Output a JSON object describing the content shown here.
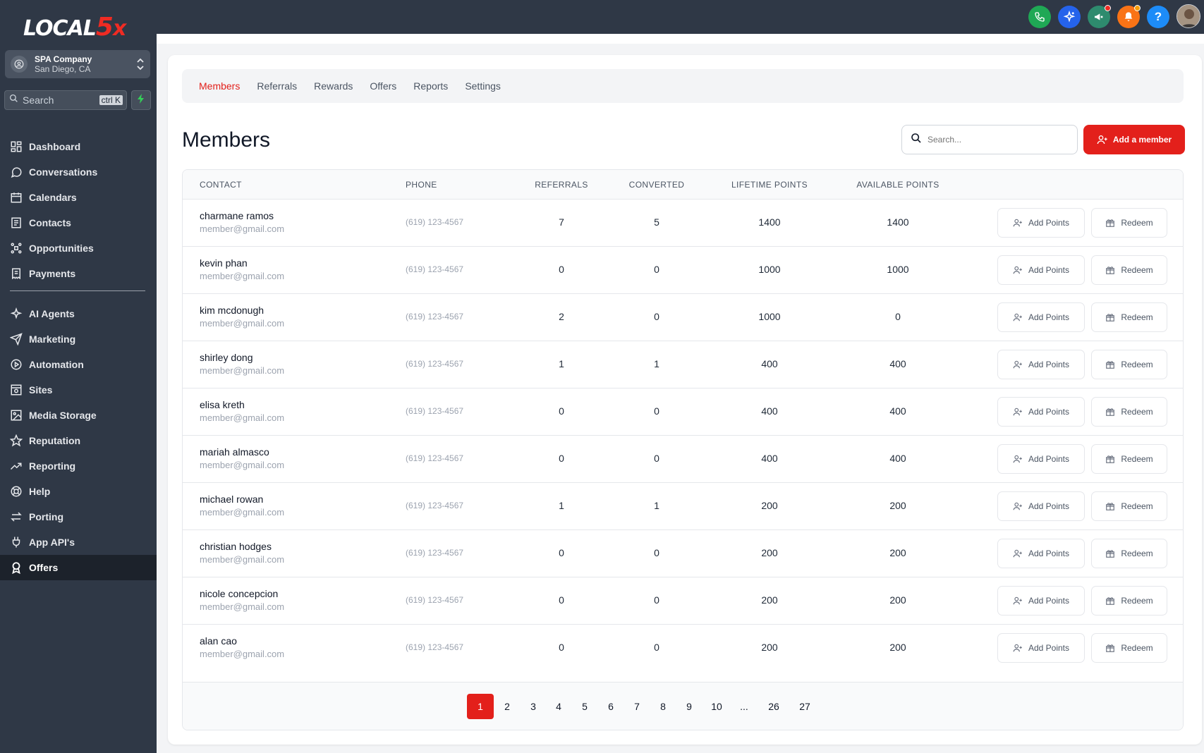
{
  "app": {
    "logo_word": "LOCAL",
    "logo_num": "5",
    "logo_x": "x"
  },
  "account": {
    "name": "SPA Company",
    "location": "San Diego, CA"
  },
  "sidebar_search": {
    "placeholder": "Search",
    "shortcut": "ctrl K"
  },
  "nav_top": [
    {
      "label": "Dashboard",
      "icon": "dashboard-icon"
    },
    {
      "label": "Conversations",
      "icon": "chat-icon"
    },
    {
      "label": "Calendars",
      "icon": "calendar-icon"
    },
    {
      "label": "Contacts",
      "icon": "contacts-icon"
    },
    {
      "label": "Opportunities",
      "icon": "opportunities-icon"
    },
    {
      "label": "Payments",
      "icon": "payments-icon"
    }
  ],
  "nav_bottom": [
    {
      "label": "AI Agents",
      "icon": "sparkle-icon"
    },
    {
      "label": "Marketing",
      "icon": "send-icon"
    },
    {
      "label": "Automation",
      "icon": "play-icon"
    },
    {
      "label": "Sites",
      "icon": "sites-icon"
    },
    {
      "label": "Media Storage",
      "icon": "image-icon"
    },
    {
      "label": "Reputation",
      "icon": "star-icon"
    },
    {
      "label": "Reporting",
      "icon": "trend-icon"
    },
    {
      "label": "Help",
      "icon": "help-icon"
    },
    {
      "label": "Porting",
      "icon": "swap-icon"
    },
    {
      "label": "App API's",
      "icon": "plug-icon"
    },
    {
      "label": "Offers",
      "icon": "offers-icon",
      "active": true
    }
  ],
  "topbar": {
    "icons": [
      "phone-icon",
      "ai-sparkle-icon",
      "megaphone-icon",
      "bell-icon",
      "help-icon",
      "user-avatar"
    ],
    "colors": {
      "phone": "#1fa855",
      "ai": "#2563eb",
      "megaphone": "#2e8b6e",
      "bell": "#f97316",
      "help": "#1d8cf8"
    }
  },
  "tabs": [
    {
      "label": "Members",
      "active": true
    },
    {
      "label": "Referrals"
    },
    {
      "label": "Rewards"
    },
    {
      "label": "Offers"
    },
    {
      "label": "Reports"
    },
    {
      "label": "Settings"
    }
  ],
  "page": {
    "title": "Members",
    "search_placeholder": "Search...",
    "add_button": "Add a member"
  },
  "table": {
    "headers": [
      "CONTACT",
      "PHONE",
      "REFERRALS",
      "CONVERTED",
      "LIFETIME POINTS",
      "AVAILABLE POINTS"
    ],
    "action_add": "Add Points",
    "action_redeem": "Redeem",
    "rows": [
      {
        "name": "charmane ramos",
        "email": "member@gmail.com",
        "phone": "(619) 123-4567",
        "referrals": "7",
        "converted": "5",
        "lifetime": "1400",
        "available": "1400"
      },
      {
        "name": "kevin phan",
        "email": "member@gmail.com",
        "phone": "(619) 123-4567",
        "referrals": "0",
        "converted": "0",
        "lifetime": "1000",
        "available": "1000"
      },
      {
        "name": "kim mcdonugh",
        "email": "member@gmail.com",
        "phone": "(619) 123-4567",
        "referrals": "2",
        "converted": "0",
        "lifetime": "1000",
        "available": "0"
      },
      {
        "name": "shirley dong",
        "email": "member@gmail.com",
        "phone": "(619) 123-4567",
        "referrals": "1",
        "converted": "1",
        "lifetime": "400",
        "available": "400"
      },
      {
        "name": "elisa kreth",
        "email": "member@gmail.com",
        "phone": "(619) 123-4567",
        "referrals": "0",
        "converted": "0",
        "lifetime": "400",
        "available": "400"
      },
      {
        "name": "mariah almasco",
        "email": "member@gmail.com",
        "phone": "(619) 123-4567",
        "referrals": "0",
        "converted": "0",
        "lifetime": "400",
        "available": "400"
      },
      {
        "name": "michael rowan",
        "email": "member@gmail.com",
        "phone": "(619) 123-4567",
        "referrals": "1",
        "converted": "1",
        "lifetime": "200",
        "available": "200"
      },
      {
        "name": "christian hodges",
        "email": "member@gmail.com",
        "phone": "(619) 123-4567",
        "referrals": "0",
        "converted": "0",
        "lifetime": "200",
        "available": "200"
      },
      {
        "name": "nicole concepcion",
        "email": "member@gmail.com",
        "phone": "(619) 123-4567",
        "referrals": "0",
        "converted": "0",
        "lifetime": "200",
        "available": "200"
      },
      {
        "name": "alan cao",
        "email": "member@gmail.com",
        "phone": "(619) 123-4567",
        "referrals": "0",
        "converted": "0",
        "lifetime": "200",
        "available": "200"
      }
    ]
  },
  "pagination": {
    "pages": [
      "1",
      "2",
      "3",
      "4",
      "5",
      "6",
      "7",
      "8",
      "9",
      "10",
      "...",
      "26",
      "27"
    ],
    "current": "1"
  }
}
